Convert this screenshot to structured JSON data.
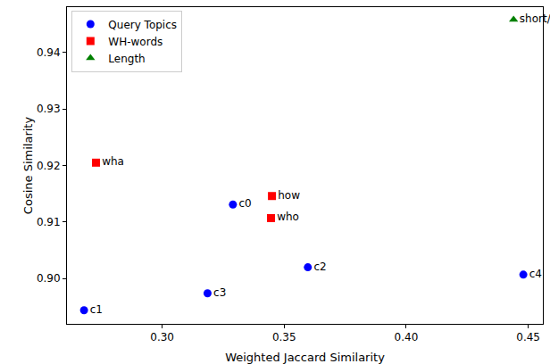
{
  "chart_data": {
    "type": "scatter",
    "x_label": "Weighted Jaccard Similarity",
    "y_label": "Cosine Similarity",
    "series": [
      {
        "name": "Query Topics",
        "color": "#0000ff",
        "marker": "circle",
        "labels": [
          "c0",
          "c1",
          "c2",
          "c3",
          "c4"
        ],
        "x": [
          0.329,
          0.268,
          0.3597,
          0.3186,
          0.448
        ],
        "values": [
          0.9131,
          0.8944,
          0.902,
          0.8974,
          0.9007
        ]
      },
      {
        "name": "WH-words",
        "color": "#ff0000",
        "marker": "square",
        "labels": [
          "wha",
          "how",
          "who"
        ],
        "x": [
          0.2729,
          0.345,
          0.3446
        ],
        "values": [
          0.9205,
          0.9146,
          0.9107
        ]
      },
      {
        "name": "Length",
        "color": "#008000",
        "marker": "triangle-up",
        "labels": [
          "short/long"
        ],
        "x": [
          0.444
        ],
        "values": [
          0.9458
        ]
      }
    ],
    "xlim": [
      0.261,
      0.456
    ],
    "ylim": [
      0.892,
      0.948
    ],
    "xticks": [
      {
        "value": 0.3,
        "label": "0.30"
      },
      {
        "value": 0.35,
        "label": "0.35"
      },
      {
        "value": 0.4,
        "label": "0.40"
      },
      {
        "value": 0.45,
        "label": "0.45"
      }
    ],
    "yticks": [
      {
        "value": 0.9,
        "label": "0.90"
      },
      {
        "value": 0.91,
        "label": "0.91"
      },
      {
        "value": 0.92,
        "label": "0.92"
      },
      {
        "value": 0.93,
        "label": "0.93"
      },
      {
        "value": 0.94,
        "label": "0.94"
      }
    ],
    "grid": false,
    "legend": "upper left"
  }
}
